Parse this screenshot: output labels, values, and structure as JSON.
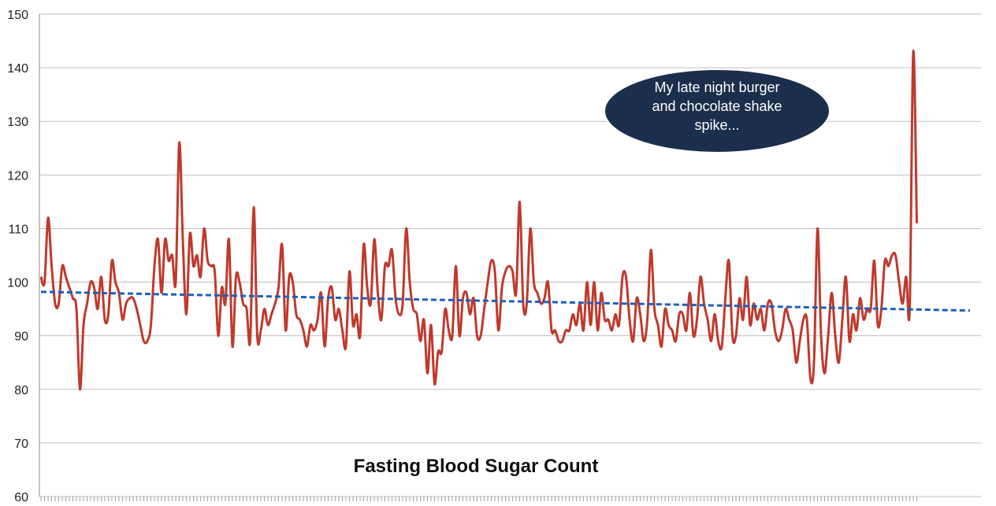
{
  "chart_data": {
    "type": "line",
    "title": "Fasting Blood Sugar Count",
    "xlabel": "",
    "ylabel": "",
    "ylim": [
      60,
      150
    ],
    "yticks": [
      60,
      70,
      80,
      90,
      100,
      110,
      120,
      130,
      140,
      150
    ],
    "grid": true,
    "legend": "none",
    "annotation": {
      "lines": [
        "My late night burger",
        "and chocolate shake",
        "spike..."
      ],
      "target_index": 251
    },
    "series": [
      {
        "color": "#c0392b",
        "values": [
          101,
          100,
          112,
          103,
          96,
          96,
          103,
          101,
          99,
          97,
          95,
          80,
          92,
          96,
          100,
          99,
          95,
          101,
          93,
          94,
          104,
          100,
          98,
          93,
          96,
          97,
          97,
          95,
          92,
          89,
          89,
          92,
          103,
          108,
          98,
          108,
          104,
          105,
          100,
          126,
          108,
          94,
          109,
          103,
          105,
          101,
          110,
          104,
          103,
          102,
          90,
          99,
          96,
          108,
          88,
          101,
          100,
          96,
          95,
          89,
          114,
          90,
          91,
          95,
          92,
          94,
          96,
          99,
          107,
          91,
          101,
          100,
          94,
          93,
          91,
          88,
          92,
          91,
          93,
          98,
          88,
          97,
          99,
          93,
          95,
          91,
          88,
          102,
          92,
          94,
          90,
          107,
          99,
          96,
          108,
          98,
          93,
          103,
          103,
          106,
          97,
          94,
          96,
          110,
          100,
          95,
          94,
          89,
          93,
          83,
          92,
          81,
          87,
          87,
          95,
          91,
          90,
          103,
          90,
          97,
          98,
          94,
          97,
          90,
          90,
          95,
          100,
          104,
          102,
          91,
          99,
          102,
          103,
          102,
          98,
          115,
          96,
          96,
          110,
          100,
          98,
          96,
          97,
          100,
          91,
          91,
          89,
          89,
          91,
          91,
          94,
          92,
          96,
          91,
          100,
          92,
          100,
          91,
          98,
          93,
          93,
          91,
          94,
          92,
          101,
          101,
          93,
          89,
          97,
          94,
          89,
          93,
          106,
          95,
          92,
          88,
          95,
          92,
          91,
          89,
          94,
          94,
          91,
          98,
          90,
          93,
          101,
          96,
          93,
          89,
          94,
          89,
          88,
          97,
          104,
          90,
          90,
          97,
          93,
          101,
          92,
          96,
          93,
          95,
          91,
          96,
          96,
          91,
          89,
          91,
          95,
          93,
          91,
          85,
          89,
          93,
          93,
          82,
          85,
          110,
          90,
          83,
          90,
          98,
          90,
          85,
          93,
          101,
          89,
          94,
          91,
          97,
          93,
          95,
          95,
          104,
          92,
          95,
          104,
          103,
          105,
          105,
          100,
          96,
          101,
          95,
          143,
          111
        ]
      },
      {
        "color": "#1f5fbf",
        "dashed": true,
        "values": [
          98.2,
          94.7
        ],
        "x": [
          0,
          262
        ]
      }
    ]
  }
}
